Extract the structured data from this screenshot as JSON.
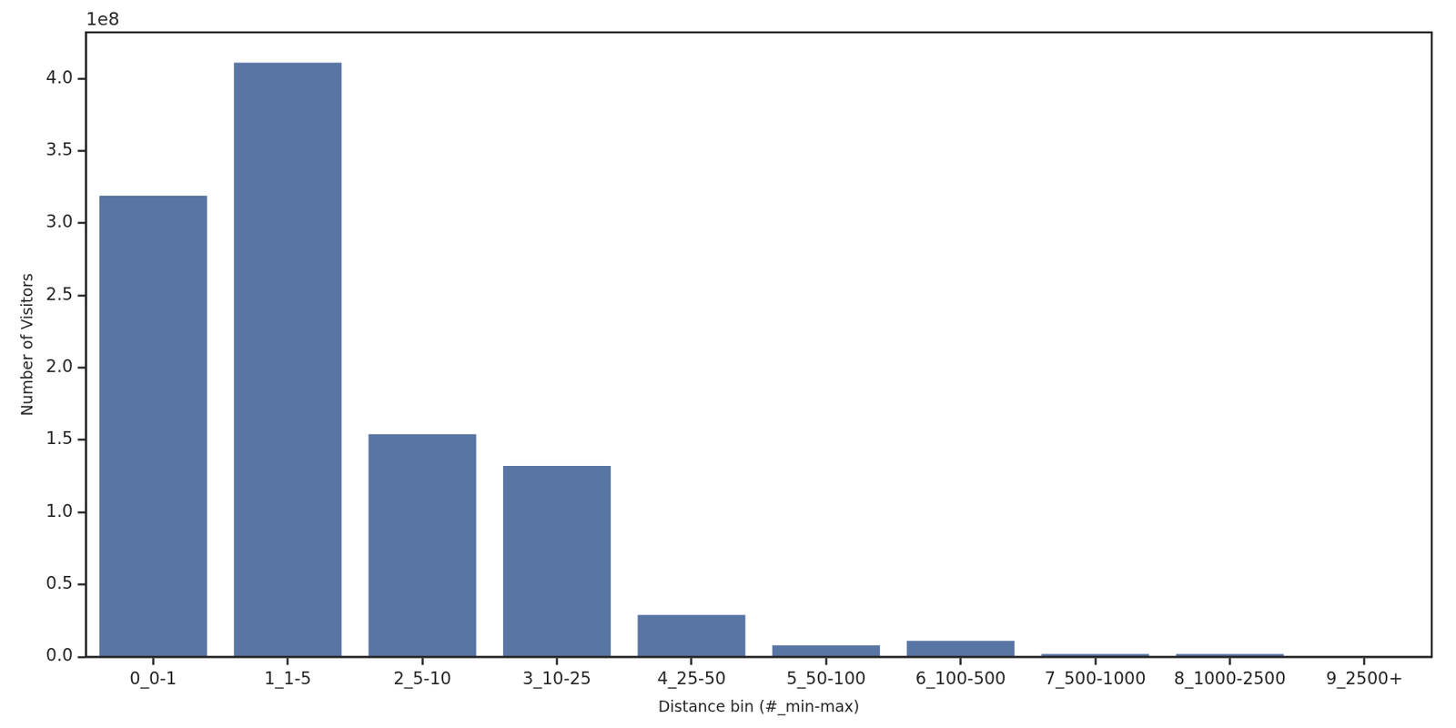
{
  "chart_data": {
    "type": "bar",
    "x_label": "Distance bin (#_min-max)",
    "y_label": "Number of Visitors",
    "y_offset_text": "1e8",
    "categories": [
      "0_0-1",
      "1_1-5",
      "2_5-10",
      "3_10-25",
      "4_25-50",
      "5_50-100",
      "6_100-500",
      "7_500-1000",
      "8_1000-2500",
      "9_2500+"
    ],
    "values": [
      3.19,
      4.11,
      1.54,
      1.32,
      0.29,
      0.08,
      0.11,
      0.02,
      0.02,
      0.003
    ],
    "color": "#5975a4",
    "ylim": [
      0,
      4.32
    ],
    "yticks": [
      {
        "value": 0,
        "label": "0.0"
      },
      0.5,
      {
        "value": 1,
        "label": "1.0"
      },
      1.5,
      {
        "value": 2,
        "label": "2.0"
      },
      2.5,
      {
        "value": 3,
        "label": "3.0"
      },
      3.5,
      {
        "value": 4,
        "label": "4.0"
      }
    ],
    "grid": false
  }
}
